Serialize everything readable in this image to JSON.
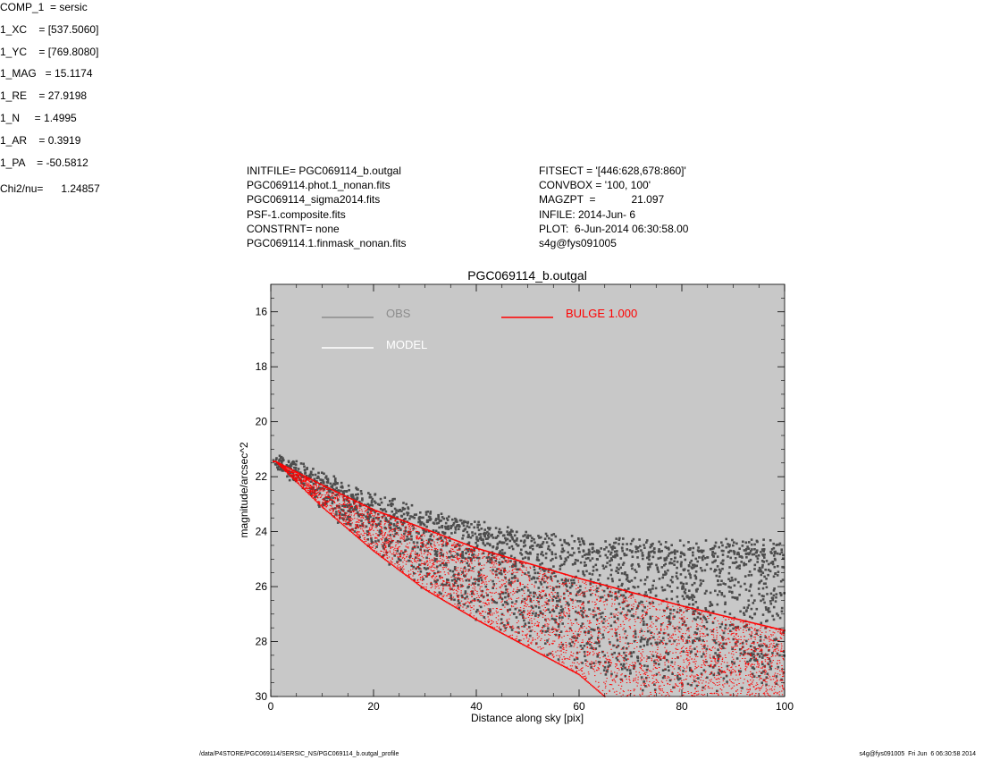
{
  "header": {
    "left": [
      "INITFILE= PGC069114_b.outgal",
      "PGC069114.phot.1_nonan.fits",
      "PGC069114_sigma2014.fits",
      "PSF-1.composite.fits",
      "CONSTRNT= none",
      "PGC069114.1.finmask_nonan.fits"
    ],
    "middle": [
      "FITSECT = '[446:628,678:860]'",
      "CONVBOX = '100, 100'",
      "MAGZPT  =            21.097",
      "INFILE: 2014-Jun- 6",
      "PLOT:  6-Jun-2014 06:30:58.00",
      "s4g@fys091005"
    ],
    "params": [
      "COMP_1  = sersic",
      "1_XC    = [537.5060]",
      "1_YC    = [769.8080]",
      "1_MAG   = 15.1174",
      "1_RE    = 27.9198",
      "1_N     = 1.4995",
      "1_AR    = 0.3919",
      "1_PA    = -50.5812"
    ],
    "chi2": "Chi2/nu=      1.24857"
  },
  "footer": {
    "left": "/data/P4STORE/PGC069114/SERSIC_NS/PGC069114_b.outgal_profile",
    "right": "s4g@fys091005  Fri Jun  6 06:30:58 2014"
  },
  "colors": {
    "plot_bg": "#c8c8c8",
    "obs": "#4d4d4d",
    "obs_legend": "#8c8c8c",
    "model_legend": "#ffffff",
    "bulge": "#ff0000"
  },
  "chart_data": {
    "type": "scatter",
    "title": "PGC069114_b.outgal",
    "xlabel": "Distance along sky [pix]",
    "ylabel": "magnitude/arcsec^2",
    "xlim": [
      0,
      100
    ],
    "ylim": [
      30,
      15
    ],
    "y_inverted": true,
    "xticks": [
      0,
      20,
      40,
      60,
      80,
      100
    ],
    "yticks": [
      16,
      18,
      20,
      22,
      24,
      26,
      28,
      30
    ],
    "grid": false,
    "legend": {
      "placement": "top",
      "entries": [
        {
          "label": "OBS",
          "color": "#8c8c8c"
        },
        {
          "label": "MODEL",
          "color": "#ffffff"
        },
        {
          "label": "BULGE  1.000",
          "color": "#ff0000"
        }
      ]
    },
    "series": [
      {
        "name": "OBS",
        "kind": "scatter-cloud",
        "x_range": [
          0.5,
          100
        ],
        "lower_envelope": [
          [
            1,
            21.5
          ],
          [
            10,
            23.0
          ],
          [
            20,
            24.6
          ],
          [
            30,
            25.9
          ],
          [
            40,
            27.0
          ],
          [
            50,
            28.0
          ],
          [
            60,
            28.9
          ],
          [
            70,
            29.6
          ]
        ],
        "upper_envelope": [
          [
            1,
            21.4
          ],
          [
            10,
            22.0
          ],
          [
            20,
            22.8
          ],
          [
            30,
            23.4
          ],
          [
            40,
            23.8
          ],
          [
            50,
            24.2
          ],
          [
            60,
            24.4
          ],
          [
            80,
            24.5
          ],
          [
            100,
            24.5
          ]
        ]
      },
      {
        "name": "BULGE  1.000",
        "kind": "scatter-band",
        "x_range": [
          0.5,
          100
        ],
        "inner_edge": [
          [
            1,
            21.45
          ],
          [
            10,
            22.3
          ],
          [
            20,
            23.2
          ],
          [
            40,
            24.6
          ],
          [
            60,
            25.7
          ],
          [
            80,
            26.7
          ],
          [
            100,
            27.6
          ]
        ],
        "outer_edge": [
          [
            1,
            21.45
          ],
          [
            10,
            23.1
          ],
          [
            20,
            24.7
          ],
          [
            30,
            26.1
          ],
          [
            40,
            27.2
          ],
          [
            50,
            28.2
          ],
          [
            60,
            29.2
          ],
          [
            65,
            30.0
          ]
        ]
      }
    ]
  }
}
